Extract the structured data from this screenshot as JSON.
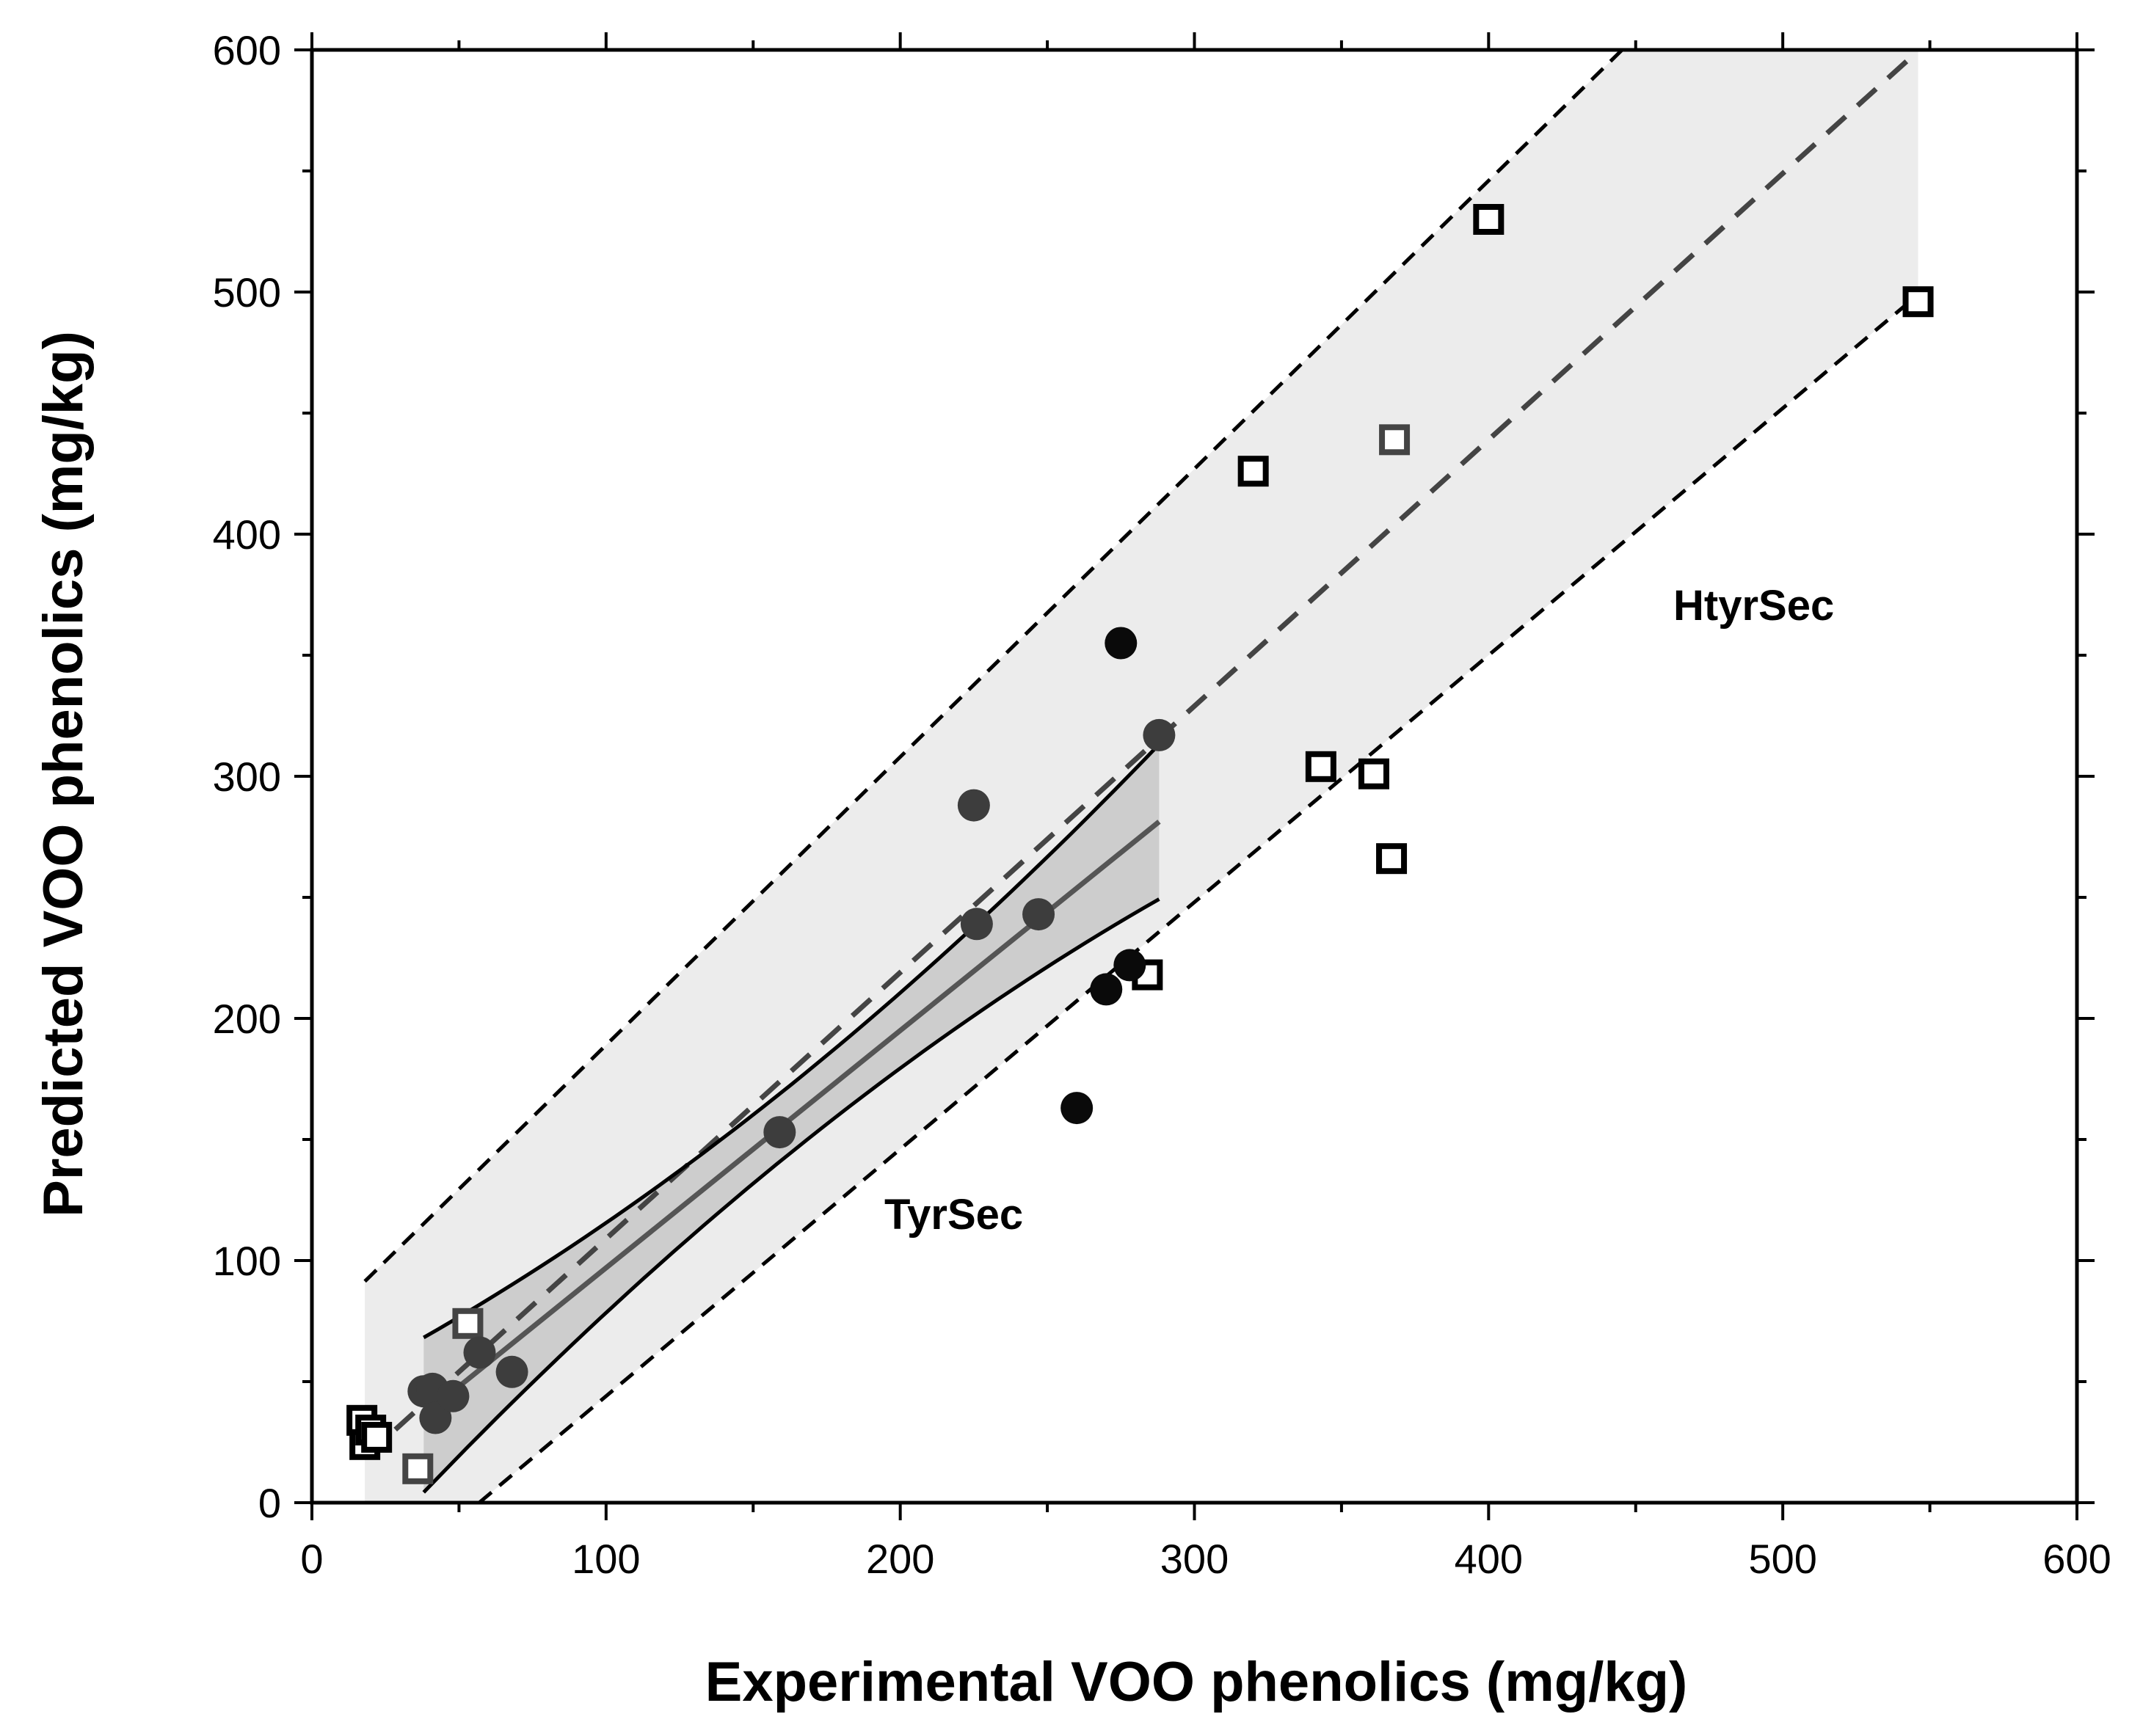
{
  "chart_data": {
    "type": "scatter",
    "title": "",
    "xlabel": "Experimental VOO phenolics (mg/kg)",
    "ylabel": "Predicted VOO phenolics (mg/kg)",
    "xlim": [
      0,
      600
    ],
    "ylim": [
      0,
      600
    ],
    "xticks": [
      0,
      100,
      200,
      300,
      400,
      500,
      600
    ],
    "yticks": [
      0,
      100,
      200,
      300,
      400,
      500,
      600
    ],
    "grid": false,
    "annotations": [
      {
        "text": "TyrSec",
        "x": 210,
        "y": 118
      },
      {
        "text": "HtyrSec",
        "x": 490,
        "y": 369
      }
    ],
    "series": [
      {
        "name": "HtyrSec",
        "marker": "open-square",
        "x": [
          17,
          18,
          20,
          22,
          36,
          53,
          284,
          320,
          343,
          361,
          367,
          368,
          400,
          546
        ],
        "y": [
          34,
          24,
          30,
          27,
          14,
          74,
          218,
          426,
          304,
          301,
          266,
          439,
          530,
          496
        ]
      },
      {
        "name": "TyrSec",
        "marker": "filled-circle",
        "x": [
          38,
          41,
          42,
          48,
          57,
          68,
          159,
          225,
          226,
          247,
          260,
          270,
          275,
          278,
          288
        ],
        "y": [
          46,
          47,
          35,
          44,
          62,
          54,
          153,
          288,
          239,
          243,
          163,
          212,
          355,
          222,
          317
        ]
      }
    ],
    "bands": [
      {
        "name": "HtyrSec prediction band",
        "x_range": [
          18,
          546
        ],
        "fit": {
          "intercept": -1,
          "slope": 1.1
        },
        "upper": {
          "intercept": 70,
          "slope": 1.19
        },
        "lower": {
          "intercept": -58,
          "slope": 1.02
        }
      },
      {
        "name": "TyrSec confidence band",
        "x_range": [
          38,
          288
        ],
        "fit": {
          "intercept": -1,
          "slope": 0.98
        }
      }
    ]
  }
}
